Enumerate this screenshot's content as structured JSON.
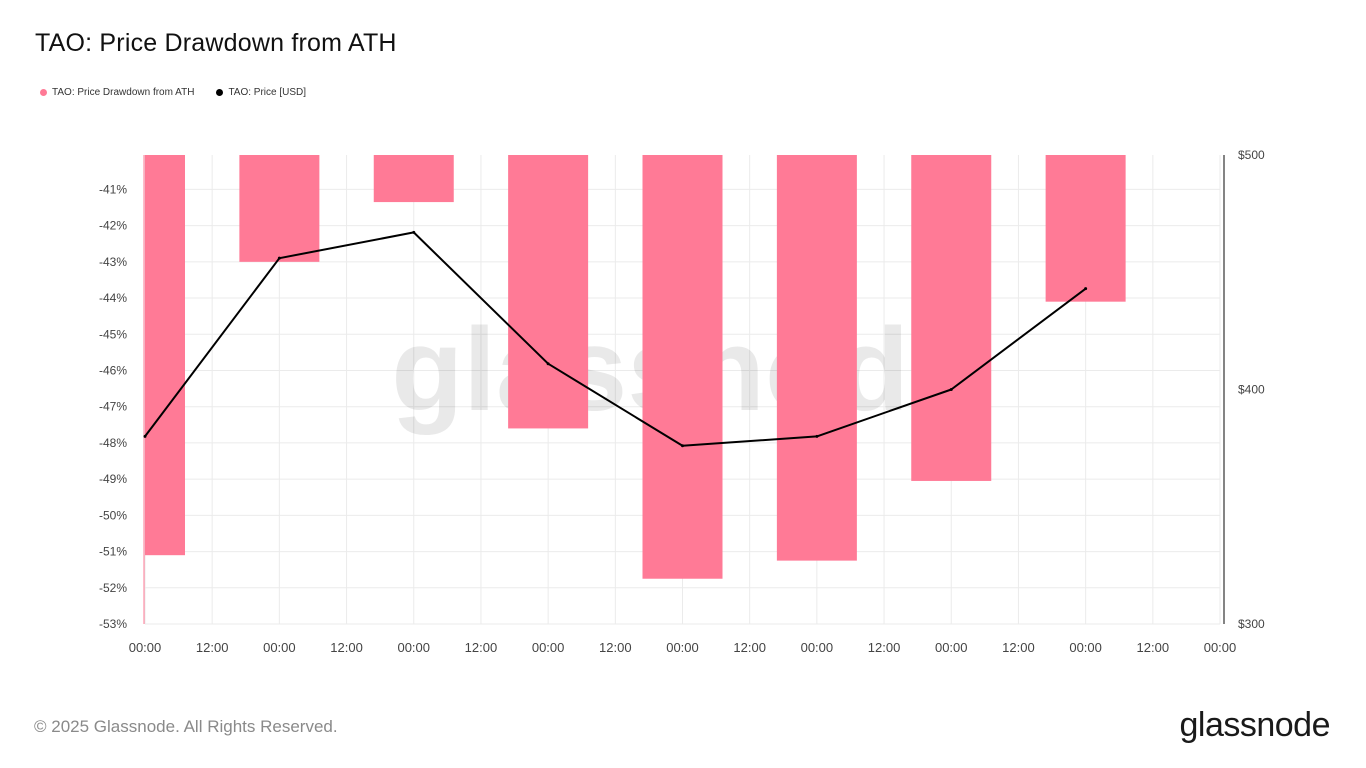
{
  "title": "TAO: Price Drawdown from ATH",
  "legend": [
    {
      "label": "TAO: Price Drawdown from ATH",
      "color": "#ff7a96"
    },
    {
      "label": "TAO: Price [USD]",
      "color": "#000000"
    }
  ],
  "footer": "© 2025 Glassnode. All Rights Reserved.",
  "brand": "glassnode",
  "watermark": "glassnode",
  "chart_data": {
    "type": "bar+line",
    "title": "TAO: Price Drawdown from ATH",
    "x_ticks": [
      "00:00",
      "12:00",
      "00:00",
      "12:00",
      "00:00",
      "12:00",
      "00:00",
      "12:00",
      "00:00",
      "12:00",
      "00:00",
      "12:00",
      "00:00",
      "12:00",
      "00:00",
      "12:00",
      "00:00"
    ],
    "x_range_hours": [
      0,
      192
    ],
    "y_left": {
      "ticks": [
        "-41%",
        "-42%",
        "-43%",
        "-44%",
        "-45%",
        "-46%",
        "-47%",
        "-48%",
        "-49%",
        "-50%",
        "-51%",
        "-52%",
        "-53%"
      ],
      "range": [
        -53,
        -40.05
      ],
      "unit": "%"
    },
    "y_right": {
      "ticks": [
        "$500",
        "$400",
        "$300"
      ],
      "range": [
        300,
        500
      ],
      "unit": "USD"
    },
    "series": [
      {
        "name": "TAO: Price Drawdown from ATH",
        "type": "bar",
        "axis": "left",
        "color": "#ff7a96",
        "points": [
          {
            "x": 0,
            "y": -51.1
          },
          {
            "x": 24,
            "y": -43.0
          },
          {
            "x": 48,
            "y": -41.35
          },
          {
            "x": 72,
            "y": -47.6
          },
          {
            "x": 96,
            "y": -51.75
          },
          {
            "x": 120,
            "y": -51.25
          },
          {
            "x": 144,
            "y": -49.05
          },
          {
            "x": 168,
            "y": -44.1
          }
        ]
      },
      {
        "name": "TAO: Price [USD]",
        "type": "line",
        "axis": "right",
        "color": "#000000",
        "points": [
          {
            "x": 0,
            "y": 380
          },
          {
            "x": 24,
            "y": 456
          },
          {
            "x": 48,
            "y": 467
          },
          {
            "x": 72,
            "y": 411
          },
          {
            "x": 96,
            "y": 376
          },
          {
            "x": 120,
            "y": 380
          },
          {
            "x": 144,
            "y": 400
          },
          {
            "x": 168,
            "y": 443
          }
        ]
      }
    ],
    "grid": true,
    "legend_position": "top-left"
  }
}
